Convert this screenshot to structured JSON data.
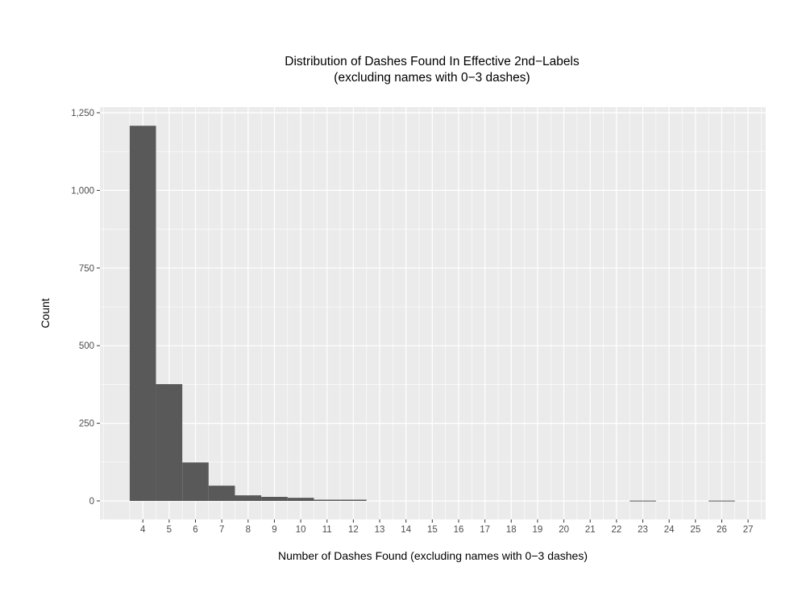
{
  "chart_data": {
    "type": "bar",
    "title": "Distribution of Dashes Found In Effective 2nd−Labels",
    "subtitle": "(excluding names with 0−3 dashes)",
    "xlabel": "Number of Dashes Found (excluding names with 0−3 dashes)",
    "ylabel": "Count",
    "categories": [
      4,
      5,
      6,
      7,
      8,
      9,
      10,
      11,
      12,
      23,
      26
    ],
    "values": [
      1208,
      376,
      124,
      49,
      18,
      13,
      10,
      4,
      4,
      1,
      1
    ],
    "xticks": [
      4,
      5,
      6,
      7,
      8,
      9,
      10,
      11,
      12,
      13,
      14,
      15,
      16,
      17,
      18,
      19,
      20,
      21,
      22,
      23,
      24,
      25,
      26,
      27
    ],
    "yticks": [
      0,
      250,
      500,
      750,
      1000,
      1250
    ],
    "ytick_labels": [
      "0",
      "250",
      "500",
      "750",
      "1,000",
      "1,250"
    ],
    "xlim": [
      2.37,
      27.67
    ],
    "ylim": [
      -60,
      1270
    ],
    "grid": true,
    "legend": null,
    "bar_color": "#595959",
    "panel_background": "#ebebeb",
    "grid_color": "#ffffff"
  }
}
